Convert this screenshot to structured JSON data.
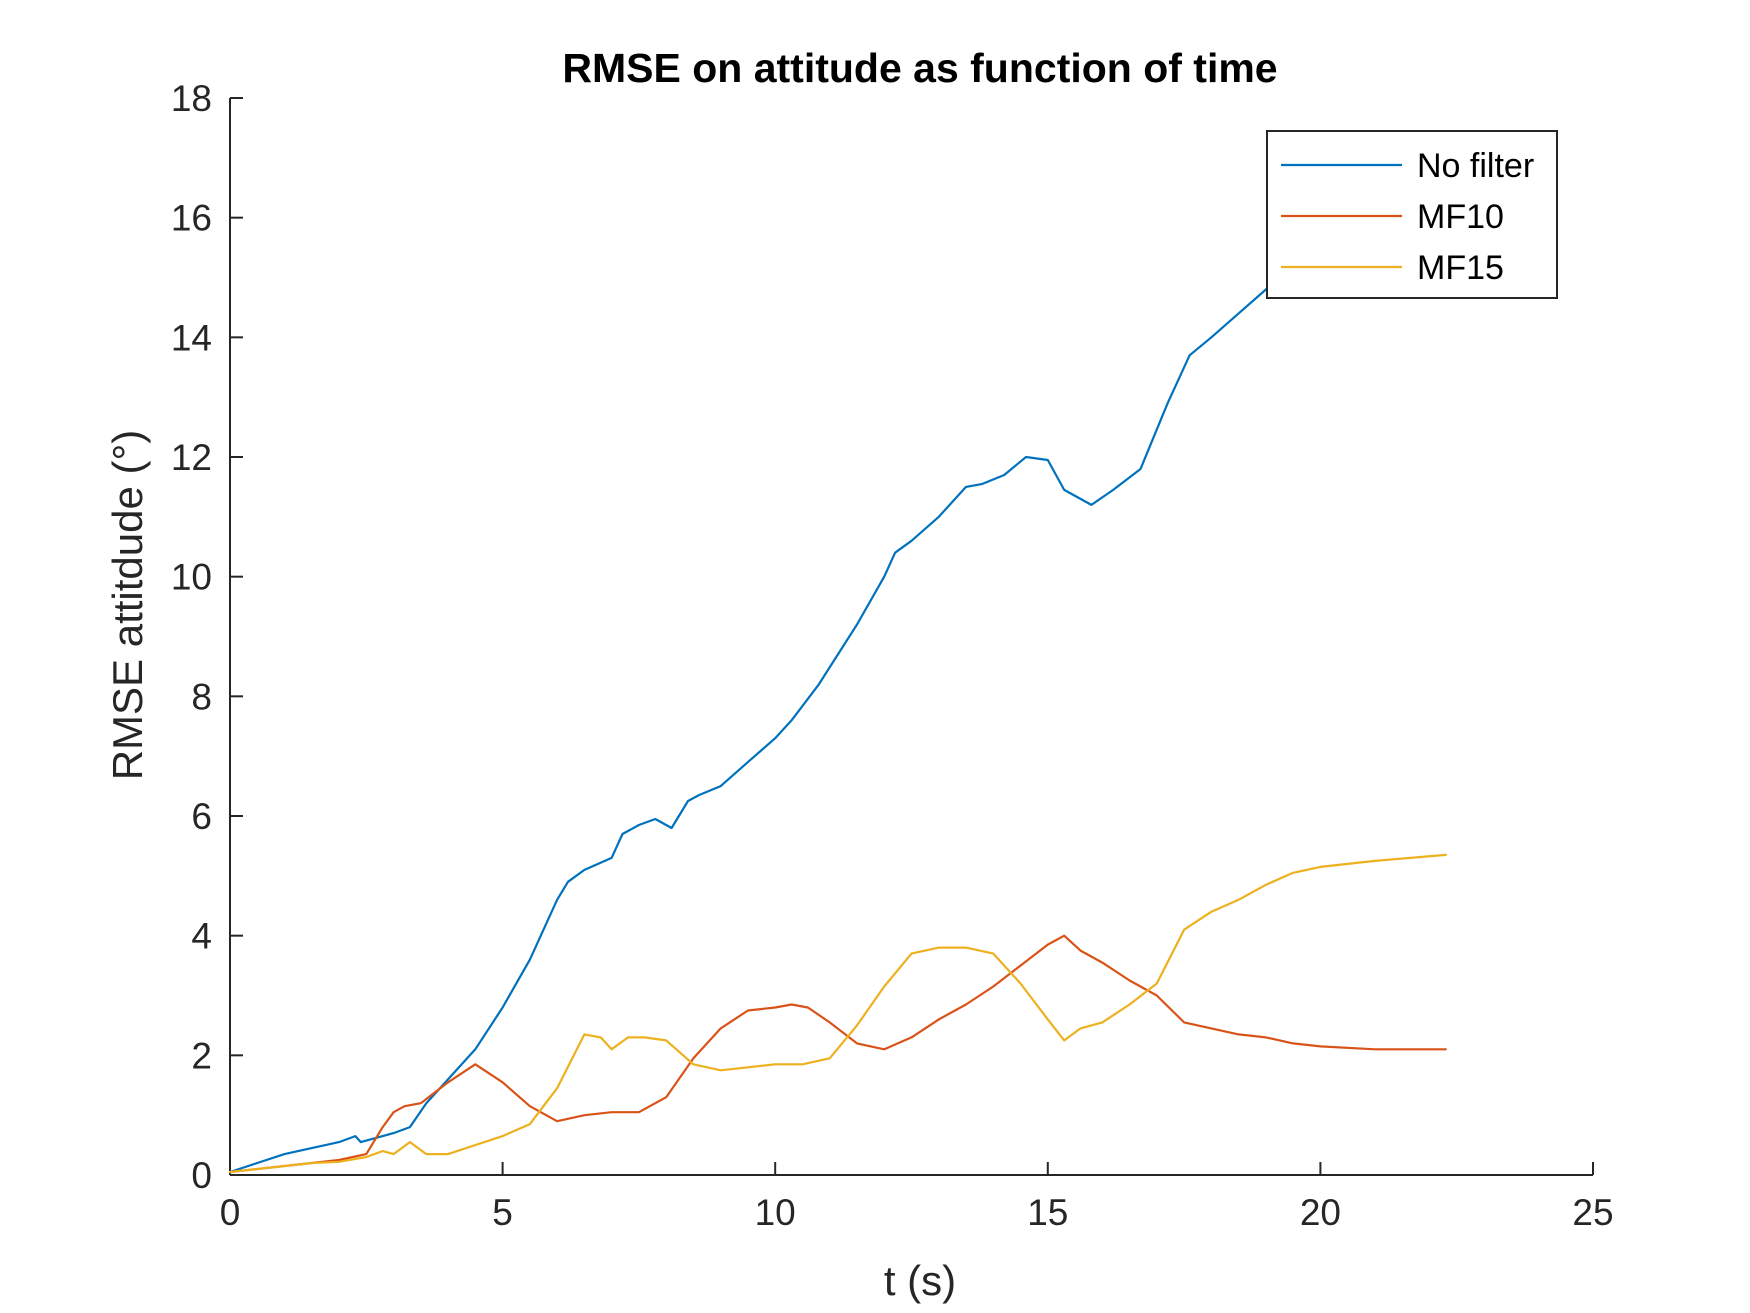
{
  "chart_data": {
    "type": "line",
    "title": "RMSE on attitude as function of time",
    "xlabel": "t (s)",
    "ylabel": "RMSE attitdude (°)",
    "xlim": [
      0,
      25
    ],
    "ylim": [
      0,
      18
    ],
    "xticks": [
      0,
      5,
      10,
      15,
      20,
      25
    ],
    "yticks": [
      0,
      2,
      4,
      6,
      8,
      10,
      12,
      14,
      16,
      18
    ],
    "xtick_labels": [
      "0",
      "5",
      "10",
      "15",
      "20",
      "25"
    ],
    "ytick_labels": [
      "0",
      "2",
      "4",
      "6",
      "8",
      "10",
      "12",
      "14",
      "16",
      "18"
    ],
    "grid": false,
    "legend_position": "top-right",
    "series": [
      {
        "name": "No filter",
        "color": "#0072BD",
        "x": [
          0,
          0.5,
          1,
          1.5,
          2,
          2.3,
          2.4,
          2.6,
          3,
          3.3,
          3.6,
          4,
          4.5,
          5,
          5.5,
          6,
          6.2,
          6.5,
          7,
          7.2,
          7.5,
          7.8,
          8.1,
          8.4,
          8.6,
          9,
          9.5,
          10,
          10.3,
          10.8,
          11.5,
          12,
          12.2,
          12.5,
          13,
          13.5,
          13.8,
          14.2,
          14.6,
          15,
          15.3,
          15.8,
          16.2,
          16.7,
          17.2,
          17.6,
          18,
          18.5,
          19,
          19.2
        ],
        "y": [
          0.05,
          0.2,
          0.35,
          0.45,
          0.55,
          0.65,
          0.55,
          0.6,
          0.7,
          0.8,
          1.2,
          1.6,
          2.1,
          2.8,
          3.6,
          4.6,
          4.9,
          5.1,
          5.3,
          5.7,
          5.85,
          5.95,
          5.8,
          6.25,
          6.35,
          6.5,
          6.9,
          7.3,
          7.6,
          8.2,
          9.2,
          10,
          10.4,
          10.6,
          11.0,
          11.5,
          11.55,
          11.7,
          12.0,
          11.95,
          11.45,
          11.2,
          11.45,
          11.8,
          12.9,
          13.7,
          14.0,
          14.4,
          14.8,
          15.0
        ]
      },
      {
        "name": "MF10",
        "color": "#D95319",
        "x": [
          0,
          0.5,
          1,
          1.5,
          2,
          2.5,
          2.8,
          3,
          3.2,
          3.5,
          4,
          4.5,
          5,
          5.5,
          6,
          6.5,
          7,
          7.5,
          8,
          8.5,
          9,
          9.5,
          10,
          10.3,
          10.6,
          11,
          11.5,
          12,
          12.5,
          13,
          13.5,
          14,
          14.5,
          15,
          15.3,
          15.6,
          16,
          16.5,
          17,
          17.5,
          18,
          18.5,
          19,
          19.5,
          20,
          21,
          22.3
        ],
        "y": [
          0.05,
          0.1,
          0.15,
          0.2,
          0.25,
          0.35,
          0.8,
          1.05,
          1.15,
          1.2,
          1.55,
          1.85,
          1.55,
          1.15,
          0.9,
          1.0,
          1.05,
          1.05,
          1.3,
          1.95,
          2.45,
          2.75,
          2.8,
          2.85,
          2.8,
          2.55,
          2.2,
          2.1,
          2.3,
          2.6,
          2.85,
          3.15,
          3.5,
          3.85,
          4.0,
          3.75,
          3.55,
          3.25,
          3.0,
          2.55,
          2.45,
          2.35,
          2.3,
          2.2,
          2.15,
          2.1,
          2.1
        ]
      },
      {
        "name": "MF15",
        "color": "#EDB120",
        "x": [
          0,
          0.5,
          1,
          1.5,
          2,
          2.5,
          2.8,
          3,
          3.3,
          3.6,
          4,
          4.5,
          5,
          5.5,
          6,
          6.5,
          6.8,
          7,
          7.3,
          7.6,
          8,
          8.5,
          9,
          9.5,
          10,
          10.5,
          11,
          11.5,
          12,
          12.5,
          13,
          13.5,
          14,
          14.5,
          15,
          15.3,
          15.6,
          16,
          16.5,
          17,
          17.5,
          18,
          18.5,
          19,
          19.5,
          20,
          21,
          22.3
        ],
        "y": [
          0.05,
          0.1,
          0.15,
          0.2,
          0.22,
          0.3,
          0.4,
          0.35,
          0.55,
          0.35,
          0.35,
          0.5,
          0.65,
          0.85,
          1.45,
          2.35,
          2.3,
          2.1,
          2.3,
          2.3,
          2.25,
          1.85,
          1.75,
          1.8,
          1.85,
          1.85,
          1.95,
          2.5,
          3.15,
          3.7,
          3.8,
          3.8,
          3.7,
          3.2,
          2.6,
          2.25,
          2.45,
          2.55,
          2.85,
          3.2,
          4.1,
          4.4,
          4.6,
          4.85,
          5.05,
          5.15,
          5.25,
          5.35
        ]
      }
    ]
  }
}
